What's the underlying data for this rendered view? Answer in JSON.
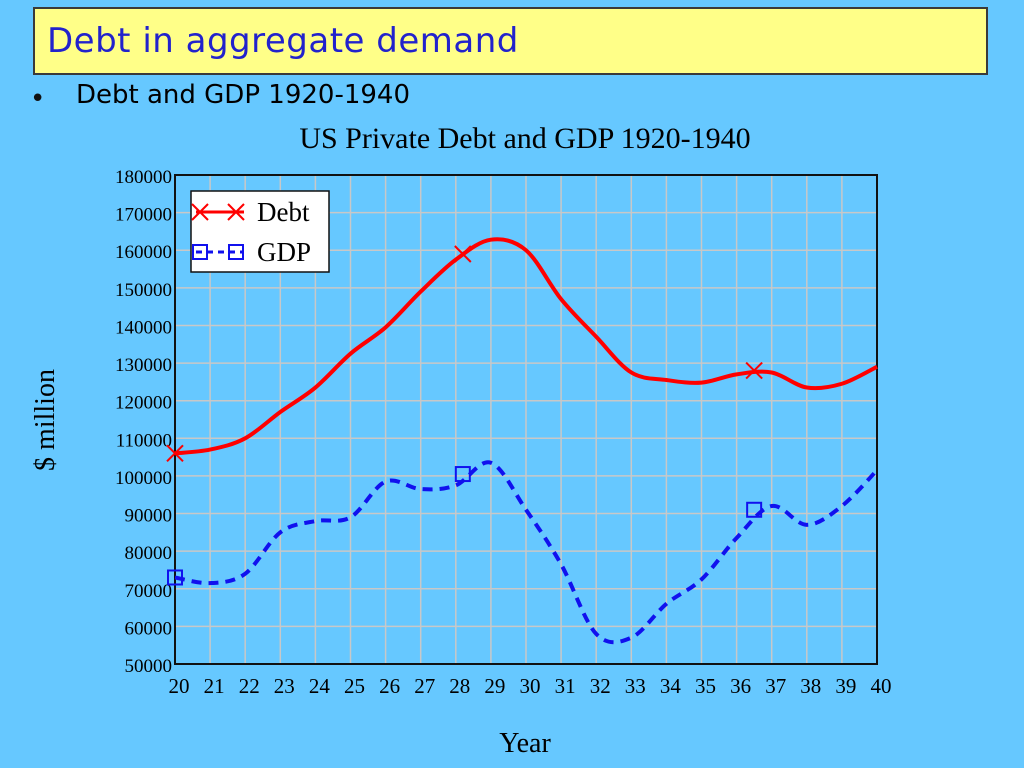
{
  "slide": {
    "title": "Debt in aggregate demand",
    "bullet_marker": "•",
    "bullet_text": "Debt and GDP 1920-1940"
  },
  "chart_data": {
    "type": "line",
    "title": "US Private Debt and GDP 1920-1940",
    "xlabel": "Year",
    "ylabel": "$ million",
    "x": [
      20,
      21,
      22,
      23,
      24,
      25,
      26,
      27,
      28,
      29,
      30,
      31,
      32,
      33,
      34,
      35,
      36,
      37,
      38,
      39,
      40
    ],
    "xticklabels": [
      "20",
      "21",
      "22",
      "23",
      "24",
      "25",
      "26",
      "27",
      "28",
      "29",
      "30",
      "31",
      "32",
      "33",
      "34",
      "35",
      "36",
      "37",
      "38",
      "39",
      "40"
    ],
    "xlim": [
      20,
      40
    ],
    "ylim": [
      50000,
      180000
    ],
    "yticks": [
      50000,
      60000,
      70000,
      80000,
      90000,
      100000,
      110000,
      120000,
      130000,
      140000,
      150000,
      160000,
      170000,
      180000
    ],
    "grid": true,
    "legend": "top-left",
    "colors": {
      "debt": "#ff0000",
      "gdp": "#1111ee",
      "grid": "#c8c8c8",
      "plot_bg": "#66c8ff"
    },
    "series": [
      {
        "name": "Debt",
        "style": "solid",
        "marker": "x",
        "values": [
          106000,
          107000,
          110000,
          117000,
          123500,
          132500,
          139500,
          149000,
          157500,
          162800,
          160000,
          147000,
          137000,
          127500,
          125500,
          124800,
          127000,
          127500,
          123500,
          124500,
          129000
        ],
        "marker_points": [
          [
            20,
            106000
          ],
          [
            28.2,
            159000
          ],
          [
            36.5,
            128000
          ]
        ]
      },
      {
        "name": "GDP",
        "style": "dashed",
        "marker": "square",
        "values": [
          73000,
          71500,
          74000,
          85000,
          88000,
          89000,
          98500,
          96500,
          97500,
          103500,
          91000,
          76500,
          58000,
          57000,
          66000,
          72500,
          83500,
          92000,
          87000,
          92000,
          101500
        ],
        "marker_points": [
          [
            20,
            73000
          ],
          [
            28.2,
            100500
          ],
          [
            36.5,
            91000
          ]
        ]
      }
    ]
  }
}
